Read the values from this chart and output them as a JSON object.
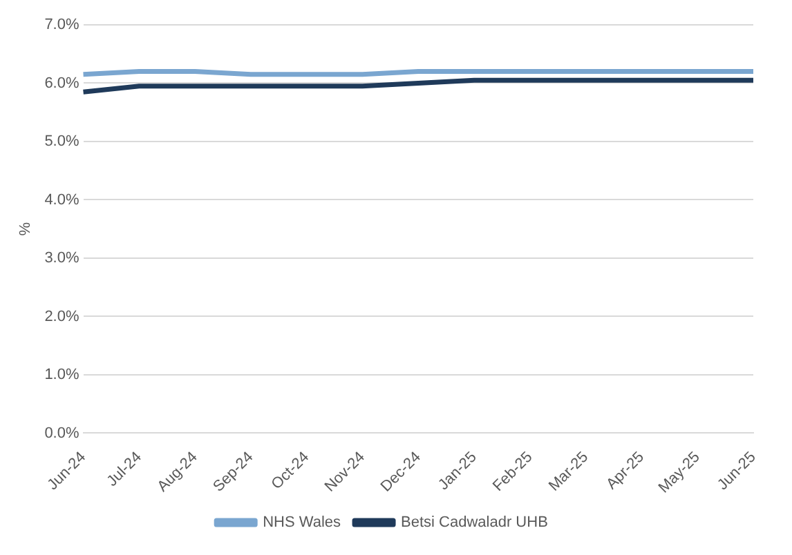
{
  "chart_data": {
    "type": "line",
    "ylabel": "%",
    "categories": [
      "Jun-24",
      "Jul-24",
      "Aug-24",
      "Sep-24",
      "Oct-24",
      "Nov-24",
      "Dec-24",
      "Jan-25",
      "Feb-25",
      "Mar-25",
      "Apr-25",
      "May-25",
      "Jun-25"
    ],
    "series": [
      {
        "name": "NHS Wales",
        "color": "#7aa6d0",
        "values": [
          6.15,
          6.2,
          6.2,
          6.15,
          6.15,
          6.15,
          6.2,
          6.2,
          6.2,
          6.2,
          6.2,
          6.2,
          6.2
        ]
      },
      {
        "name": "Betsi Cadwaladr UHB",
        "color": "#1f3a5a",
        "values": [
          5.85,
          5.95,
          5.95,
          5.95,
          5.95,
          5.95,
          6.0,
          6.05,
          6.05,
          6.05,
          6.05,
          6.05,
          6.05
        ]
      }
    ],
    "ylim": [
      0,
      7
    ],
    "yticks": [
      {
        "value": 0,
        "label": "0.0%"
      },
      {
        "value": 1,
        "label": "1.0%"
      },
      {
        "value": 2,
        "label": "2.0%"
      },
      {
        "value": 3,
        "label": "3.0%"
      },
      {
        "value": 4,
        "label": "4.0%"
      },
      {
        "value": 5,
        "label": "5.0%"
      },
      {
        "value": 6,
        "label": "6.0%"
      },
      {
        "value": 7,
        "label": "7.0%"
      }
    ],
    "grid": "y",
    "legend": "bottom",
    "marker": "none",
    "line_style": "solid"
  }
}
